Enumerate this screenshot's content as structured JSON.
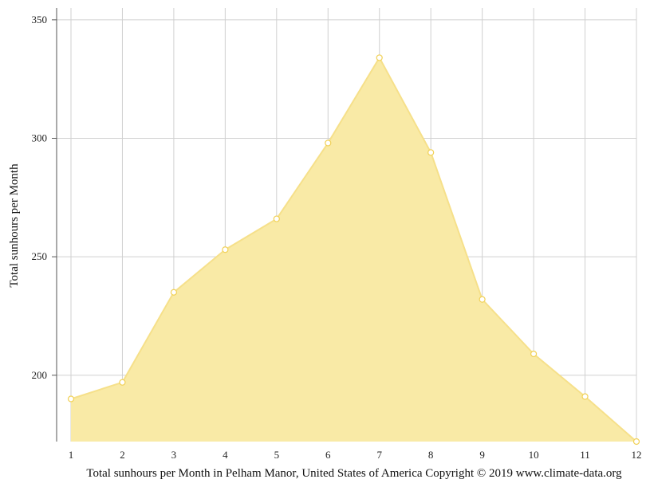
{
  "chart_data": {
    "type": "area",
    "x": [
      1,
      2,
      3,
      4,
      5,
      6,
      7,
      8,
      9,
      10,
      11,
      12
    ],
    "series": [
      {
        "values": [
          190,
          197,
          235,
          253,
          266,
          298,
          334,
          294,
          232,
          209,
          191,
          172
        ]
      }
    ],
    "xlabel": "Total sunhours per Month in Pelham Manor, United States of America Copyright © 2019 www.climate-data.org",
    "ylabel": "Total sunhours per Month",
    "xlim": [
      1,
      12
    ],
    "ylim": [
      172,
      355
    ],
    "yticks": [
      200,
      250,
      300,
      350
    ],
    "grid": true,
    "legend": "none",
    "colors": {
      "fill": "#f9eaa6",
      "line": "#f6e08a",
      "marker_stroke": "#f1d157",
      "marker_fill": "#ffffff"
    }
  }
}
